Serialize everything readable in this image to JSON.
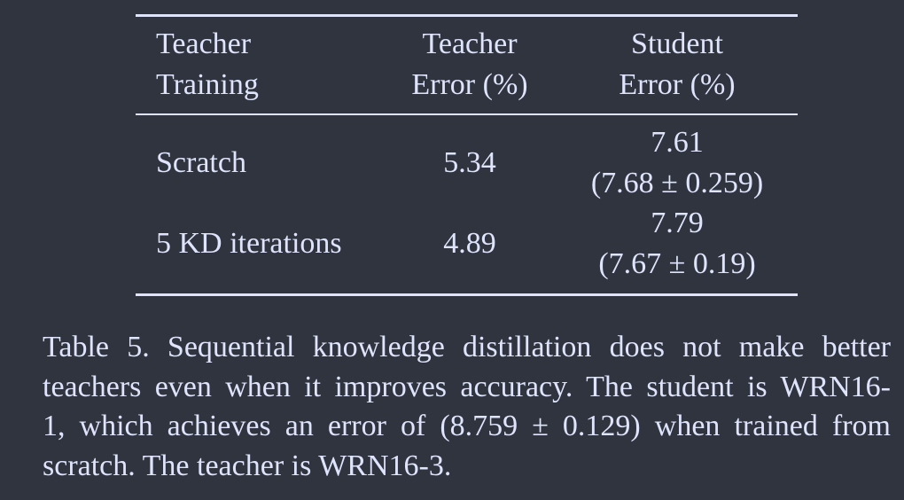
{
  "table": {
    "headers": {
      "teacher_training": [
        "Teacher",
        "Training"
      ],
      "teacher_error": [
        "Teacher",
        "Error (%)"
      ],
      "student_error": [
        "Student",
        "Error (%)"
      ]
    },
    "rows": [
      {
        "training": "Scratch",
        "teacher_error": "5.34",
        "student_error": "7.61",
        "student_error_detail": "(7.68 ± 0.259)"
      },
      {
        "training": "5 KD iterations",
        "teacher_error": "4.89",
        "student_error": "7.79",
        "student_error_detail": "(7.67 ± 0.19)"
      }
    ]
  },
  "caption": {
    "lines": [
      "Table 5. Sequential knowledge distillation does not make better",
      "teachers even when it improves accuracy. The student is WRN16-",
      "1, which achieves an error of (8.759 ± 0.129) when trained from",
      "scratch. The teacher is WRN16-3."
    ]
  }
}
